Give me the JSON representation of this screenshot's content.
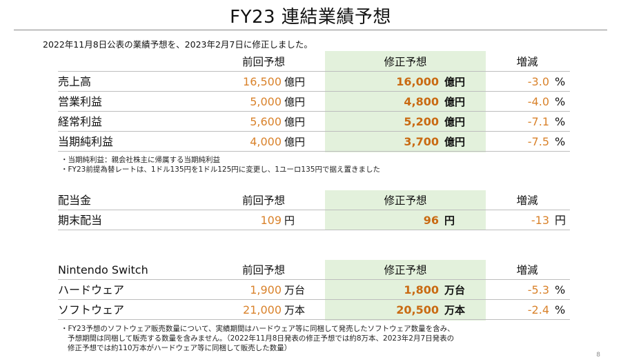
{
  "title": "FY23 連結業績予想",
  "intro": "2022年11月8日公表の業績予想を、2023年2月7日に修正しました。",
  "performance": {
    "headers": {
      "label": "",
      "prev": "前回予想",
      "revised": "修正予想",
      "change": "増減"
    },
    "rows": [
      {
        "label": "売上高",
        "prev": "16,500",
        "prev_unit": "億円",
        "revised": "16,000",
        "revised_unit": "億円",
        "change": "-3.0",
        "change_unit": "%"
      },
      {
        "label": "営業利益",
        "prev": "5,000",
        "prev_unit": "億円",
        "revised": "4,800",
        "revised_unit": "億円",
        "change": "-4.0",
        "change_unit": "%"
      },
      {
        "label": "経常利益",
        "prev": "5,600",
        "prev_unit": "億円",
        "revised": "5,200",
        "revised_unit": "億円",
        "change": "-7.1",
        "change_unit": "%"
      },
      {
        "label": "当期純利益",
        "prev": "4,000",
        "prev_unit": "億円",
        "revised": "3,700",
        "revised_unit": "億円",
        "change": "-7.5",
        "change_unit": "%"
      }
    ],
    "notes": [
      "・当期純利益：親会社株主に帰属する当期純利益",
      "・FY23前提為替レートは、1ドル135円を1ドル125円に変更し、1ユーロ135円で据え置きました"
    ]
  },
  "dividend": {
    "headers": {
      "label": "配当金",
      "prev": "前回予想",
      "revised": "修正予想",
      "change": "増減"
    },
    "rows": [
      {
        "label": "期末配当",
        "prev": "109",
        "prev_unit": "円",
        "revised": "96",
        "revised_unit": "円",
        "change": "-13",
        "change_unit": "円"
      }
    ]
  },
  "switch": {
    "headers": {
      "label": "Nintendo Switch",
      "prev": "前回予想",
      "revised": "修正予想",
      "change": "増減"
    },
    "rows": [
      {
        "label": "ハードウェア",
        "prev": "1,900",
        "prev_unit": "万台",
        "revised": "1,800",
        "revised_unit": "万台",
        "change": "-5.3",
        "change_unit": "%"
      },
      {
        "label": "ソフトウェア",
        "prev": "21,000",
        "prev_unit": "万本",
        "revised": "20,500",
        "revised_unit": "万本",
        "change": "-2.4",
        "change_unit": "%"
      }
    ],
    "notes": [
      "・FY23予想のソフトウェア販売数量について、実績期間はハードウェア等に同梱して発売したソフトウェア数量を含み、",
      "予想期間は同梱して販売する数量を含みません。（2022年11月8日発表の修正予想では約8万本、2023年2月7日発表の",
      "修正予想では約110万本がハードウェア等に同梱して販売した数量）"
    ]
  },
  "page_number": "8",
  "colors": {
    "accent_orange": "#d9822b",
    "revised_orange": "#c96a12",
    "band_green": "#e3f1dc"
  }
}
